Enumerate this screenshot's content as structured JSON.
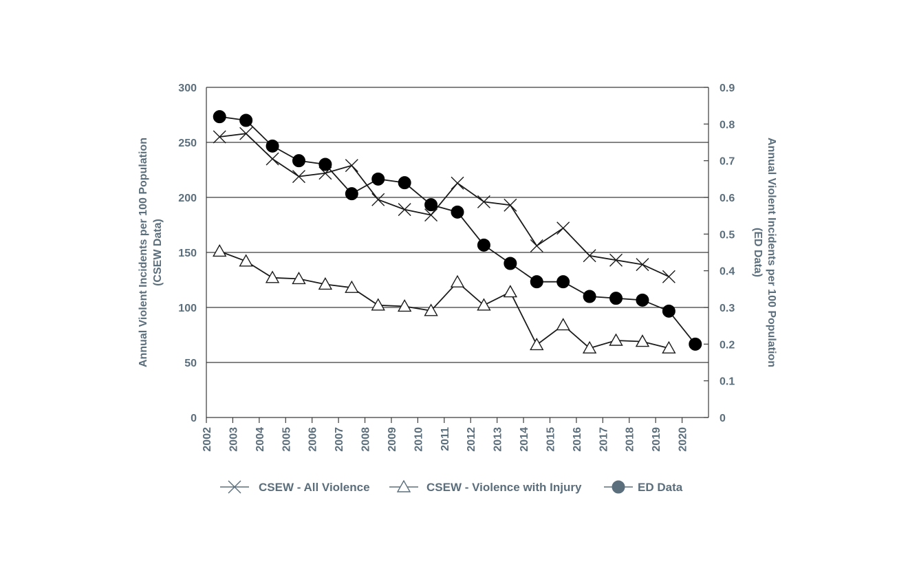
{
  "chart_data": {
    "type": "line",
    "xlabel": "",
    "x_ticks": [
      "2002",
      "2003",
      "2004",
      "2005",
      "2006",
      "2007",
      "2008",
      "2009",
      "2010",
      "2011",
      "2012",
      "2013",
      "2014",
      "2015",
      "2016",
      "2017",
      "2018",
      "2019",
      "2020"
    ],
    "ylabel_left_line1": "Annual Violent Incidents per 100 Population",
    "ylabel_left_line2": "(CSEW Data)",
    "ylabel_right_line1": "Annual Violent Incidents per 100 Population",
    "ylabel_right_line2": "(ED Data)",
    "ylim_left": [
      0,
      300
    ],
    "yticks_left": [
      "0",
      "50",
      "100",
      "150",
      "200",
      "250",
      "300"
    ],
    "ylim_right": [
      0,
      0.9
    ],
    "yticks_right": [
      "0",
      "0.1",
      "0.2",
      "0.3",
      "0.4",
      "0.5",
      "0.6",
      "0.7",
      "0.8",
      "0.9"
    ],
    "series": [
      {
        "name": "CSEW - All Violence",
        "axis": "left",
        "marker": "x",
        "x": [
          2002.5,
          2003.5,
          2004.5,
          2005.5,
          2006.5,
          2007.5,
          2008.5,
          2009.5,
          2010.5,
          2011.5,
          2012.5,
          2013.5,
          2014.5,
          2015.5,
          2016.5,
          2017.5,
          2018.5,
          2019.5
        ],
        "values": [
          255,
          258,
          235,
          219,
          222,
          229,
          198,
          189,
          184,
          213,
          196,
          193,
          156,
          172,
          147,
          143,
          139,
          128
        ]
      },
      {
        "name": "CSEW - Violence with Injury",
        "axis": "left",
        "marker": "triangle",
        "x": [
          2002.5,
          2003.5,
          2004.5,
          2005.5,
          2006.5,
          2007.5,
          2008.5,
          2009.5,
          2010.5,
          2011.5,
          2012.5,
          2013.5,
          2014.5,
          2015.5,
          2016.5,
          2017.5,
          2018.5,
          2019.5
        ],
        "values": [
          151,
          142,
          127,
          126,
          121,
          118,
          102,
          101,
          97,
          123,
          102,
          114,
          66,
          84,
          63,
          70,
          69,
          63
        ]
      },
      {
        "name": "ED Data",
        "axis": "right",
        "marker": "circle",
        "x": [
          2002.5,
          2003.5,
          2004.5,
          2005.5,
          2006.5,
          2007.5,
          2008.5,
          2009.5,
          2010.5,
          2011.5,
          2012.5,
          2013.5,
          2014.5,
          2015.5,
          2016.5,
          2017.5,
          2018.5,
          2019.5,
          2020.5
        ],
        "values": [
          0.82,
          0.81,
          0.74,
          0.7,
          0.69,
          0.61,
          0.65,
          0.64,
          0.58,
          0.56,
          0.47,
          0.42,
          0.37,
          0.37,
          0.33,
          0.325,
          0.32,
          0.29,
          0.2
        ]
      }
    ],
    "legend": [
      "CSEW - All Violence",
      "CSEW - Violence with Injury",
      "ED Data"
    ],
    "legend_position": "bottom",
    "colors": {
      "line": "#1a1a1a",
      "text": "#5b6e7c",
      "grid": "#3a3a3a",
      "legend_marker": "#5b6e7c"
    }
  }
}
